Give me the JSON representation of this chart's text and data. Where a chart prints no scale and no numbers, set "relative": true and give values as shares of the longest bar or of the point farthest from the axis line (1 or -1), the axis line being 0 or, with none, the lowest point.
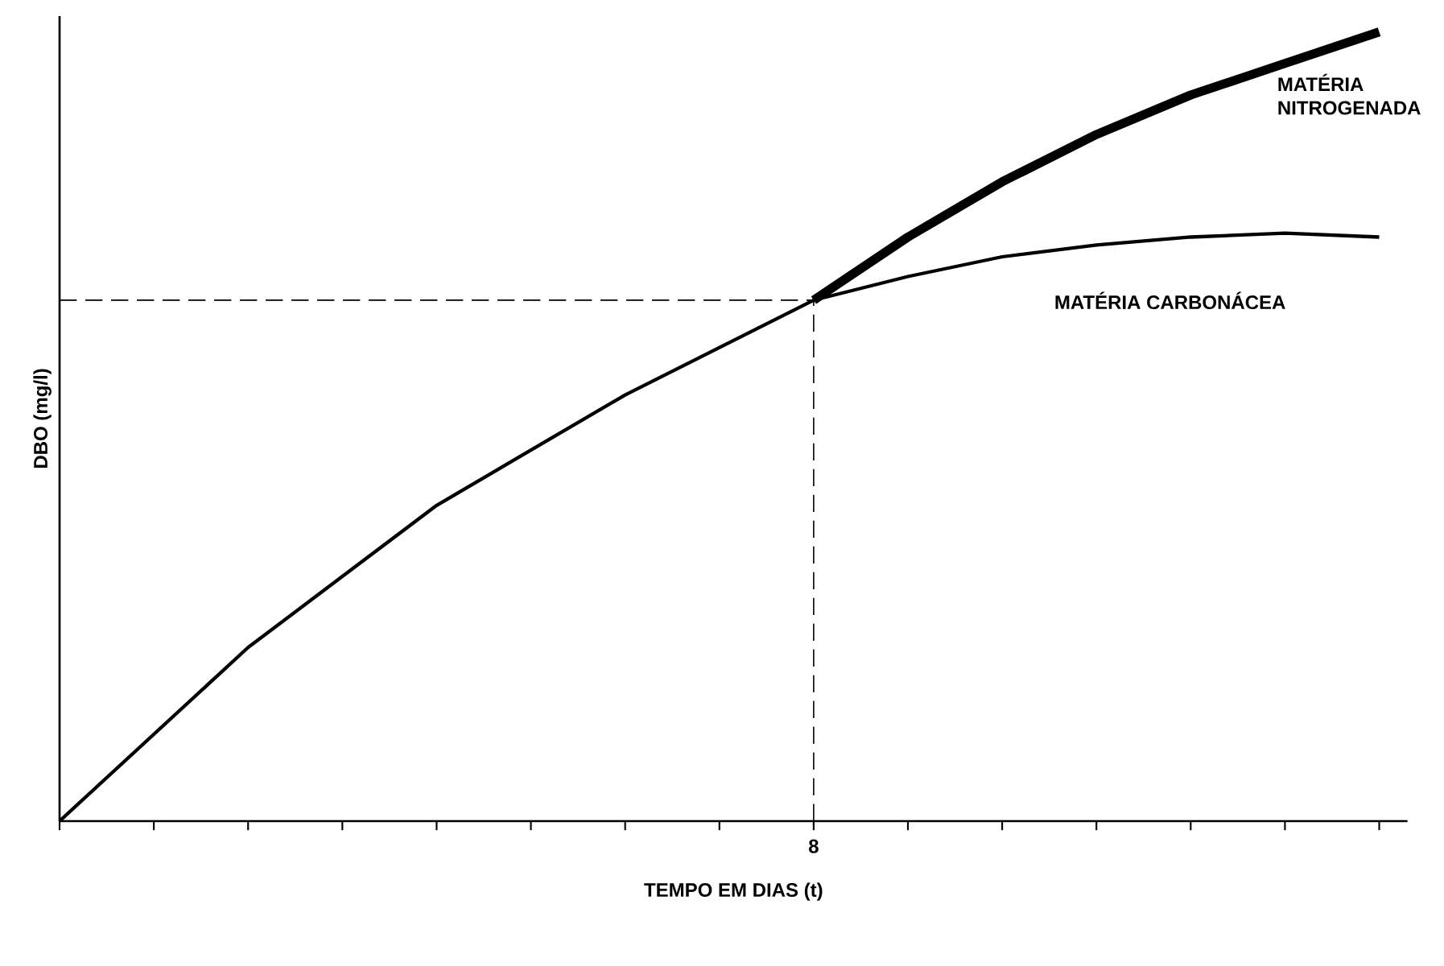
{
  "chart_data": {
    "type": "line",
    "xlabel": "TEMPO EM DIAS (t)",
    "ylabel": "DBO (mg/l)",
    "relative": true,
    "categories": [
      null,
      null,
      null,
      null,
      null,
      null,
      null,
      null,
      null,
      null,
      null,
      null,
      null,
      null,
      null
    ],
    "series": [
      {
        "name": "MATÉRIA CARBONÁCEA",
        "color": "#000000",
        "values": [
          0,
          0.11,
          0.22,
          0.31,
          0.4,
          0.47,
          0.54,
          0.6,
          0.66,
          0.69,
          0.715,
          0.73,
          0.74,
          0.745,
          0.74
        ]
      },
      {
        "name": "MATÉRIA NITROGENADA",
        "color": "#000000",
        "values": [
          null,
          null,
          null,
          null,
          null,
          null,
          null,
          null,
          0.66,
          0.74,
          0.81,
          0.87,
          0.92,
          0.96,
          1.0
        ]
      }
    ],
    "ref_lines": [
      {
        "axis": "y",
        "value": 0.66,
        "line_style": "dashed"
      }
    ],
    "annotations": [
      "8"
    ],
    "marker": "none",
    "line_style": "solid"
  }
}
